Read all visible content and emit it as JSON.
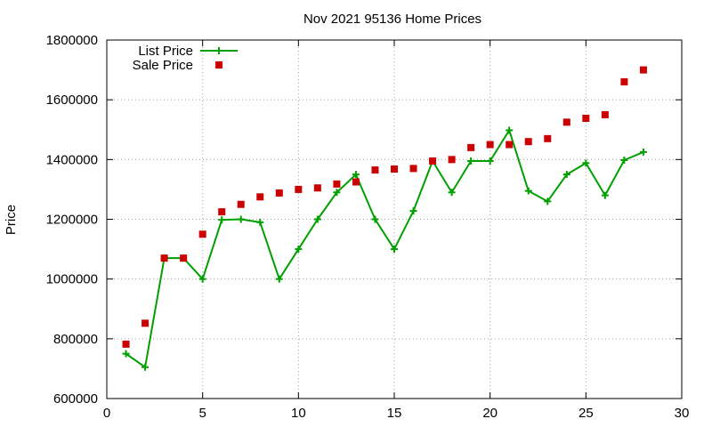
{
  "chart_data": {
    "type": "line",
    "title": "Nov 2021 95136 Home Prices",
    "xlabel": "",
    "ylabel": "Price",
    "xlim": [
      0,
      30
    ],
    "ylim": [
      600000,
      1800000
    ],
    "x_ticks": [
      "0",
      "5",
      "10",
      "15",
      "20",
      "25",
      "30"
    ],
    "y_ticks": [
      "600000",
      "800000",
      "1000000",
      "1200000",
      "1400000",
      "1600000",
      "1800000"
    ],
    "grid": true,
    "legend_position": "top-left",
    "x": [
      1,
      2,
      3,
      4,
      5,
      6,
      7,
      8,
      9,
      10,
      11,
      12,
      13,
      14,
      15,
      16,
      17,
      18,
      19,
      20,
      21,
      22,
      23,
      24,
      25,
      26,
      27,
      28
    ],
    "series": [
      {
        "name": "List Price",
        "style": "linespoints",
        "marker": "plus",
        "color": "#00a000",
        "values": [
          750000,
          705000,
          1070000,
          1070000,
          1000000,
          1198000,
          1200000,
          1190000,
          1000000,
          1100000,
          1200000,
          1290000,
          1350000,
          1200000,
          1100000,
          1228000,
          1395000,
          1290000,
          1395000,
          1395000,
          1498000,
          1295000,
          1260000,
          1350000,
          1388000,
          1280000,
          1398000,
          1425000
        ]
      },
      {
        "name": "Sale Price",
        "style": "points",
        "marker": "square",
        "color": "#cc0000",
        "values": [
          782000,
          852000,
          1070000,
          1070000,
          1150000,
          1225000,
          1250000,
          1275000,
          1288000,
          1300000,
          1305000,
          1318000,
          1325000,
          1365000,
          1368000,
          1370000,
          1395000,
          1400000,
          1440000,
          1450000,
          1450000,
          1460000,
          1470000,
          1525000,
          1538000,
          1550000,
          1660000,
          1700000
        ]
      }
    ]
  }
}
